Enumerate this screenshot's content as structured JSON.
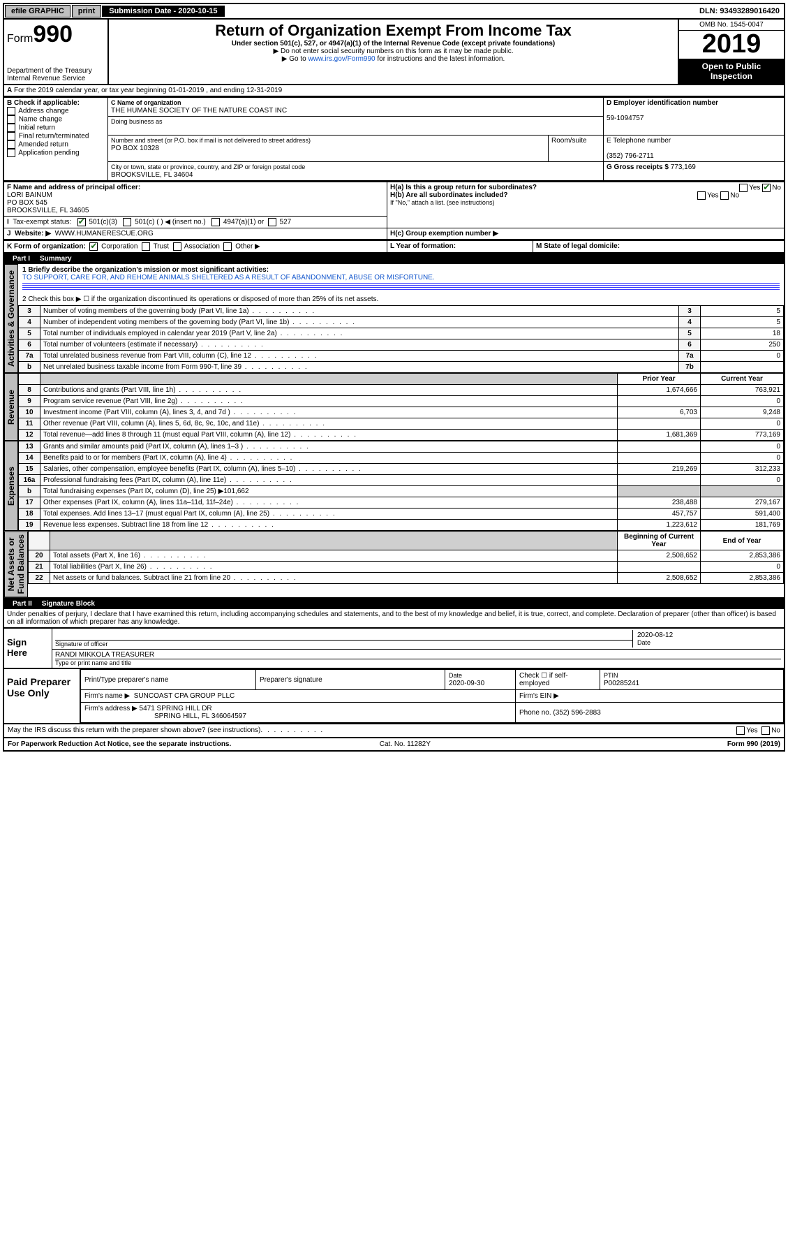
{
  "topbar": {
    "efile": "efile GRAPHIC",
    "print": "print",
    "sub_label": "Submission Date - 2020-10-15",
    "dln": "DLN: 93493289016420"
  },
  "header": {
    "form_prefix": "Form",
    "form_number": "990",
    "dept": "Department of the Treasury",
    "irs": "Internal Revenue Service",
    "title": "Return of Organization Exempt From Income Tax",
    "sub1": "Under section 501(c), 527, or 4947(a)(1) of the Internal Revenue Code (except private foundations)",
    "sub2": "▶ Do not enter social security numbers on this form as it may be made public.",
    "sub3_pre": "▶ Go to ",
    "sub3_link": "www.irs.gov/Form990",
    "sub3_post": " for instructions and the latest information.",
    "omb": "OMB No. 1545-0047",
    "year": "2019",
    "open1": "Open to Public",
    "open2": "Inspection"
  },
  "rowA": {
    "prefix": "A",
    "text": "For the 2019 calendar year, or tax year beginning 01-01-2019     , and ending 12-31-2019"
  },
  "boxB": {
    "title": "B Check if applicable:",
    "items": [
      "Address change",
      "Name change",
      "Initial return",
      "Final return/terminated",
      "Amended return",
      "Application pending"
    ]
  },
  "boxC": {
    "label_name": "C Name of organization",
    "org_name": "THE HUMANE SOCIETY OF THE NATURE COAST INC",
    "dba_label": "Doing business as",
    "addr_label": "Number and street (or P.O. box if mail is not delivered to street address)",
    "room_label": "Room/suite",
    "addr": "PO BOX 10328",
    "city_label": "City or town, state or province, country, and ZIP or foreign postal code",
    "city": "BROOKSVILLE, FL  34604"
  },
  "boxD": {
    "label": "D Employer identification number",
    "value": "59-1094757"
  },
  "boxE": {
    "label": "E Telephone number",
    "value": "(352) 796-2711"
  },
  "boxG": {
    "label": "G Gross receipts $",
    "value": "773,169"
  },
  "boxF": {
    "label": "F  Name and address of principal officer:",
    "name": "LORI BAINUM",
    "addr1": "PO BOX 545",
    "addr2": "BROOKSVILLE, FL  34605"
  },
  "boxH": {
    "ha": "H(a)  Is this a group return for subordinates?",
    "hb": "H(b)  Are all subordinates included?",
    "hb_note": "If \"No,\" attach a list. (see instructions)",
    "hc": "H(c)  Group exemption number ▶",
    "yes": "Yes",
    "no": "No"
  },
  "rowI": {
    "label": "I",
    "text": "Tax-exempt status:",
    "opt1": "501(c)(3)",
    "opt2": "501(c) (   ) ◀ (insert no.)",
    "opt3": "4947(a)(1) or",
    "opt4": "527"
  },
  "rowJ": {
    "label": "J",
    "text_label": "Website: ▶",
    "text": "WWW.HUMANERESCUE.ORG"
  },
  "rowK": {
    "label": "K Form of organization:",
    "opts": [
      "Corporation",
      "Trust",
      "Association",
      "Other ▶"
    ],
    "L": "L Year of formation:",
    "M": "M State of legal domicile:"
  },
  "part1": {
    "hdr": "Part I",
    "title": "Summary",
    "q1_label": "1  Briefly describe the organization's mission or most significant activities:",
    "q1_text": "TO SUPPORT, CARE FOR, AND REHOME ANIMALS SHELTERED AS A RESULT OF ABANDONMENT, ABUSE OR MISFORTUNE.",
    "q2": "2   Check this box ▶ ☐  if the organization discontinued its operations or disposed of more than 25% of its net assets.",
    "rows_gov": [
      {
        "n": "3",
        "t": "Number of voting members of the governing body (Part VI, line 1a)",
        "b": "3",
        "v": "5"
      },
      {
        "n": "4",
        "t": "Number of independent voting members of the governing body (Part VI, line 1b)",
        "b": "4",
        "v": "5"
      },
      {
        "n": "5",
        "t": "Total number of individuals employed in calendar year 2019 (Part V, line 2a)",
        "b": "5",
        "v": "18"
      },
      {
        "n": "6",
        "t": "Total number of volunteers (estimate if necessary)",
        "b": "6",
        "v": "250"
      },
      {
        "n": "7a",
        "t": "Total unrelated business revenue from Part VIII, column (C), line 12",
        "b": "7a",
        "v": "0"
      },
      {
        "n": "b",
        "t": "Net unrelated business taxable income from Form 990-T, line 39",
        "b": "7b",
        "v": ""
      }
    ],
    "rev_hdr_prior": "Prior Year",
    "rev_hdr_cur": "Current Year",
    "rows_rev": [
      {
        "n": "8",
        "t": "Contributions and grants (Part VIII, line 1h)",
        "p": "1,674,666",
        "c": "763,921"
      },
      {
        "n": "9",
        "t": "Program service revenue (Part VIII, line 2g)",
        "p": "",
        "c": "0"
      },
      {
        "n": "10",
        "t": "Investment income (Part VIII, column (A), lines 3, 4, and 7d )",
        "p": "6,703",
        "c": "9,248"
      },
      {
        "n": "11",
        "t": "Other revenue (Part VIII, column (A), lines 5, 6d, 8c, 9c, 10c, and 11e)",
        "p": "",
        "c": "0"
      },
      {
        "n": "12",
        "t": "Total revenue—add lines 8 through 11 (must equal Part VIII, column (A), line 12)",
        "p": "1,681,369",
        "c": "773,169"
      }
    ],
    "rows_exp": [
      {
        "n": "13",
        "t": "Grants and similar amounts paid (Part IX, column (A), lines 1–3 )",
        "p": "",
        "c": "0"
      },
      {
        "n": "14",
        "t": "Benefits paid to or for members (Part IX, column (A), line 4)",
        "p": "",
        "c": "0"
      },
      {
        "n": "15",
        "t": "Salaries, other compensation, employee benefits (Part IX, column (A), lines 5–10)",
        "p": "219,269",
        "c": "312,233"
      },
      {
        "n": "16a",
        "t": "Professional fundraising fees (Part IX, column (A), line 11e)",
        "p": "",
        "c": "0"
      },
      {
        "n": "b",
        "t": "Total fundraising expenses (Part IX, column (D), line 25) ▶101,662",
        "p": null,
        "c": null,
        "shade": true
      },
      {
        "n": "17",
        "t": "Other expenses (Part IX, column (A), lines 11a–11d, 11f–24e)",
        "p": "238,488",
        "c": "279,167"
      },
      {
        "n": "18",
        "t": "Total expenses. Add lines 13–17 (must equal Part IX, column (A), line 25)",
        "p": "457,757",
        "c": "591,400"
      },
      {
        "n": "19",
        "t": "Revenue less expenses. Subtract line 18 from line 12",
        "p": "1,223,612",
        "c": "181,769"
      }
    ],
    "na_hdr_beg": "Beginning of Current Year",
    "na_hdr_end": "End of Year",
    "rows_na": [
      {
        "n": "20",
        "t": "Total assets (Part X, line 16)",
        "p": "2,508,652",
        "c": "2,853,386"
      },
      {
        "n": "21",
        "t": "Total liabilities (Part X, line 26)",
        "p": "",
        "c": "0"
      },
      {
        "n": "22",
        "t": "Net assets or fund balances. Subtract line 21 from line 20",
        "p": "2,508,652",
        "c": "2,853,386"
      }
    ],
    "vlabels": {
      "gov": "Activities & Governance",
      "rev": "Revenue",
      "exp": "Expenses",
      "na": "Net Assets or\nFund Balances"
    }
  },
  "part2": {
    "hdr": "Part II",
    "title": "Signature Block",
    "decl": "Under penalties of perjury, I declare that I have examined this return, including accompanying schedules and statements, and to the best of my knowledge and belief, it is true, correct, and complete. Declaration of preparer (other than officer) is based on all information of which preparer has any knowledge.",
    "sign_label": "Sign Here",
    "sig_officer": "Signature of officer",
    "sig_date": "2020-08-12",
    "date_lbl": "Date",
    "printed": "RANDI MIKKOLA  TREASURER",
    "printed_lbl": "Type or print name and title",
    "paid_label": "Paid Preparer Use Only",
    "col_prep": "Print/Type preparer's name",
    "col_sig": "Preparer's signature",
    "col_date": "Date",
    "date_val": "2020-09-30",
    "col_chk": "Check ☐ if self-employed",
    "col_ptin": "PTIN",
    "ptin": "P00285241",
    "firm_name_lbl": "Firm's name    ▶",
    "firm_name": "SUNCOAST CPA GROUP PLLC",
    "firm_ein_lbl": "Firm's EIN ▶",
    "firm_addr_lbl": "Firm's address ▶",
    "firm_addr1": "5471 SPRING HILL DR",
    "firm_addr2": "SPRING HILL, FL  346064597",
    "phone_lbl": "Phone no.",
    "phone": "(352) 596-2883",
    "discuss": "May the IRS discuss this return with the preparer shown above? (see instructions)",
    "yes": "Yes",
    "no": "No"
  },
  "footer": {
    "pra": "For Paperwork Reduction Act Notice, see the separate instructions.",
    "cat": "Cat. No. 11282Y",
    "form": "Form 990 (2019)"
  }
}
